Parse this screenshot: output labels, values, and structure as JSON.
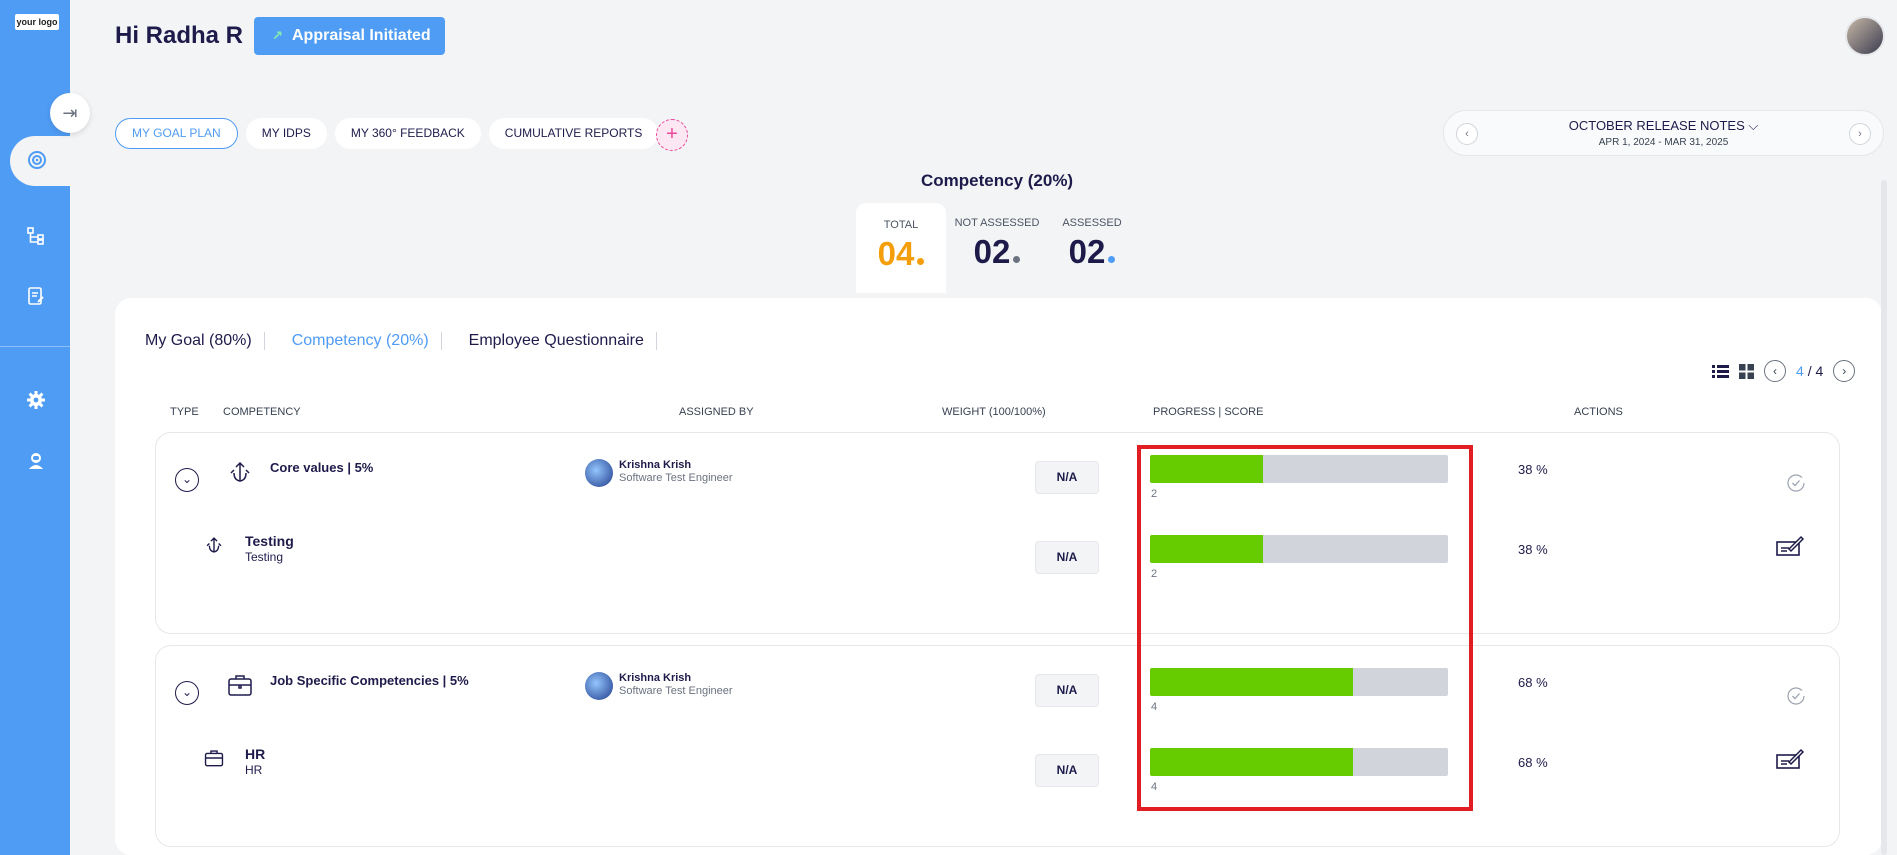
{
  "app": {
    "logo_text": "your logo",
    "greeting": "Hi Radha R",
    "status_button": "Appraisal Initiated"
  },
  "nav": {
    "pills": [
      "MY GOAL PLAN",
      "MY IDPS",
      "MY 360° FEEDBACK",
      "CUMULATIVE REPORTS"
    ],
    "active_pill": "MY GOAL PLAN"
  },
  "release": {
    "title": "OCTOBER RELEASE NOTES",
    "dates": "APR 1, 2024 - MAR 31, 2025"
  },
  "summary": {
    "title": "Competency (20%)",
    "total_label": "TOTAL",
    "total_value": "04",
    "not_assessed_label": "NOT ASSESSED",
    "not_assessed_value": "02",
    "assessed_label": "ASSESSED",
    "assessed_value": "02",
    "colors": {
      "total": "#f59e0b",
      "not_assessed": "#6b7280",
      "assessed": "#4f9cf4"
    }
  },
  "tabs": [
    {
      "label": "My Goal (80%)",
      "active": false
    },
    {
      "label": "Competency (20%)",
      "active": true
    },
    {
      "label": "Employee Questionnaire",
      "active": false
    }
  ],
  "pagination": {
    "current": "4",
    "separator": "/",
    "total": "4"
  },
  "columns": {
    "type": "TYPE",
    "competency": "COMPETENCY",
    "assigned_by": "ASSIGNED BY",
    "weight": "WEIGHT (100/100%)",
    "progress": "PROGRESS | SCORE",
    "actions": "ACTIONS"
  },
  "groups": [
    {
      "name": "Core values | 5%",
      "icon": "anchor-icon",
      "assignee_name": "Krishna Krish",
      "assignee_role": "Software Test Engineer",
      "weight": "N/A",
      "progress": 0.38,
      "score": "2",
      "percent": "38  %",
      "child": {
        "name": "Testing",
        "desc": "Testing",
        "weight": "N/A",
        "progress": 0.38,
        "score": "2",
        "percent": "38  %"
      }
    },
    {
      "name": "Job Specific Competencies | 5%",
      "icon": "briefcase-icon",
      "assignee_name": "Krishna Krish",
      "assignee_role": "Software Test Engineer",
      "weight": "N/A",
      "progress": 0.68,
      "score": "4",
      "percent": "68  %",
      "child": {
        "name": "HR",
        "desc": "HR",
        "weight": "N/A",
        "progress": 0.68,
        "score": "4",
        "percent": "68  %"
      }
    }
  ],
  "colors": {
    "accent": "#4f9cf4",
    "progress_fill": "#66cc00",
    "highlight": "#e11d24"
  }
}
